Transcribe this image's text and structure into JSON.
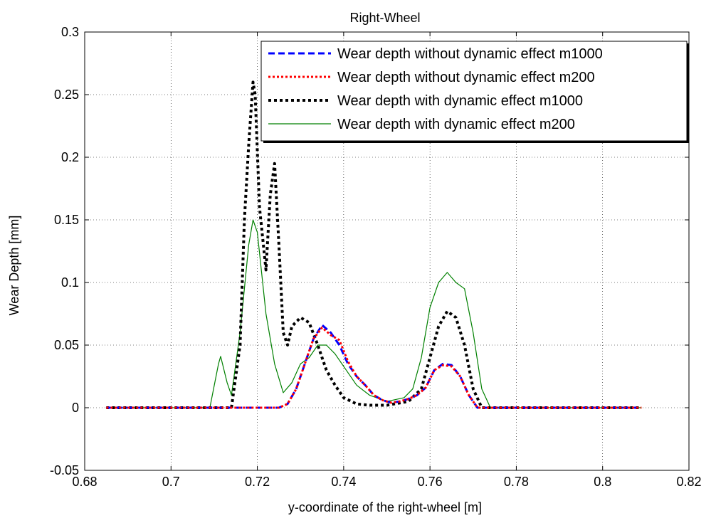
{
  "chart_data": {
    "type": "line",
    "title": "Right-Wheel",
    "xlabel": "y-coordinate of the right-wheel [m]",
    "ylabel": "Wear Depth [mm]",
    "xlim": [
      0.68,
      0.82
    ],
    "ylim": [
      -0.05,
      0.3
    ],
    "xticks": [
      0.68,
      0.7,
      0.72,
      0.74,
      0.76,
      0.78,
      0.8,
      0.82
    ],
    "xtick_labels": [
      "0.68",
      "0.7",
      "0.72",
      "0.74",
      "0.76",
      "0.78",
      "0.8",
      "0.82"
    ],
    "yticks": [
      -0.05,
      0,
      0.05,
      0.1,
      0.15,
      0.2,
      0.25,
      0.3
    ],
    "ytick_labels": [
      "-0.05",
      "0",
      "0.05",
      "0.1",
      "0.15",
      "0.2",
      "0.25",
      "0.3"
    ],
    "grid": true,
    "legend_position": "top-right",
    "series": [
      {
        "name": "Wear depth without dynamic effect m1000",
        "color": "#0000ff",
        "style": "dashed",
        "x": [
          0.685,
          0.725,
          0.727,
          0.729,
          0.731,
          0.733,
          0.735,
          0.737,
          0.739,
          0.741,
          0.743,
          0.745,
          0.747,
          0.749,
          0.751,
          0.753,
          0.755,
          0.757,
          0.759,
          0.761,
          0.763,
          0.765,
          0.767,
          0.769,
          0.771,
          0.809
        ],
        "y": [
          0,
          0,
          0.003,
          0.015,
          0.035,
          0.055,
          0.066,
          0.06,
          0.05,
          0.035,
          0.025,
          0.018,
          0.01,
          0.006,
          0.004,
          0.005,
          0.007,
          0.01,
          0.016,
          0.03,
          0.035,
          0.034,
          0.025,
          0.01,
          0,
          0
        ]
      },
      {
        "name": "Wear depth without dynamic effect m200",
        "color": "#ff0000",
        "style": "dotted",
        "x": [
          0.685,
          0.725,
          0.727,
          0.729,
          0.731,
          0.733,
          0.735,
          0.737,
          0.739,
          0.741,
          0.743,
          0.745,
          0.747,
          0.749,
          0.751,
          0.753,
          0.755,
          0.757,
          0.759,
          0.761,
          0.763,
          0.765,
          0.767,
          0.769,
          0.771,
          0.809
        ],
        "y": [
          0,
          0,
          0.003,
          0.015,
          0.035,
          0.055,
          0.064,
          0.058,
          0.054,
          0.037,
          0.025,
          0.018,
          0.01,
          0.006,
          0.004,
          0.005,
          0.007,
          0.01,
          0.016,
          0.03,
          0.034,
          0.033,
          0.025,
          0.01,
          0,
          0
        ]
      },
      {
        "name": "Wear depth with dynamic effect m1000",
        "color": "#000000",
        "style": "dotted-thick",
        "x": [
          0.685,
          0.714,
          0.716,
          0.717,
          0.718,
          0.719,
          0.7195,
          0.7205,
          0.722,
          0.723,
          0.724,
          0.725,
          0.726,
          0.727,
          0.728,
          0.73,
          0.732,
          0.734,
          0.736,
          0.738,
          0.74,
          0.743,
          0.746,
          0.75,
          0.755,
          0.758,
          0.76,
          0.762,
          0.764,
          0.766,
          0.768,
          0.77,
          0.772,
          0.809
        ],
        "y": [
          0,
          0,
          0.05,
          0.15,
          0.21,
          0.26,
          0.25,
          0.16,
          0.11,
          0.17,
          0.195,
          0.13,
          0.06,
          0.05,
          0.065,
          0.072,
          0.068,
          0.05,
          0.03,
          0.018,
          0.008,
          0.003,
          0.002,
          0.002,
          0.005,
          0.015,
          0.04,
          0.065,
          0.077,
          0.072,
          0.05,
          0.015,
          0,
          0
        ]
      },
      {
        "name": "Wear depth with dynamic effect m200",
        "color": "#008000",
        "style": "solid",
        "x": [
          0.685,
          0.709,
          0.711,
          0.7115,
          0.713,
          0.714,
          0.716,
          0.718,
          0.719,
          0.72,
          0.722,
          0.724,
          0.726,
          0.728,
          0.73,
          0.732,
          0.734,
          0.736,
          0.738,
          0.74,
          0.743,
          0.746,
          0.75,
          0.754,
          0.756,
          0.758,
          0.76,
          0.762,
          0.764,
          0.766,
          0.768,
          0.77,
          0.772,
          0.774,
          0.809
        ],
        "y": [
          0,
          0,
          0.035,
          0.041,
          0.02,
          0.01,
          0.06,
          0.13,
          0.15,
          0.14,
          0.075,
          0.035,
          0.012,
          0.02,
          0.035,
          0.04,
          0.05,
          0.05,
          0.043,
          0.033,
          0.018,
          0.01,
          0.005,
          0.008,
          0.015,
          0.04,
          0.08,
          0.1,
          0.108,
          0.1,
          0.095,
          0.06,
          0.015,
          0,
          0
        ]
      }
    ]
  }
}
